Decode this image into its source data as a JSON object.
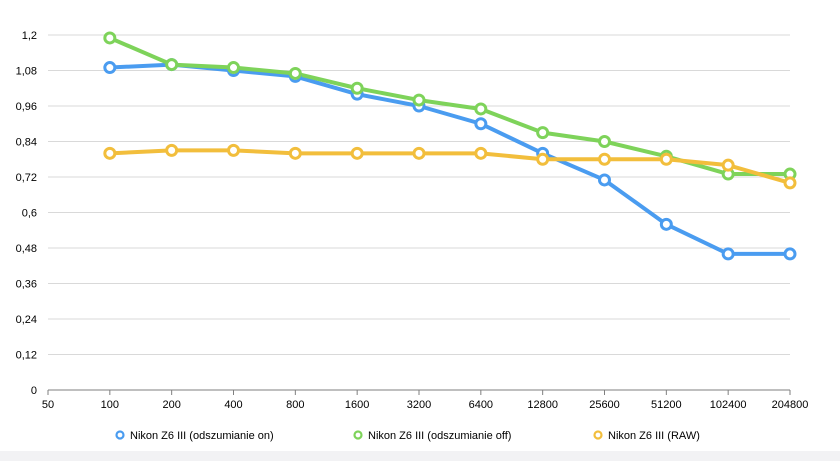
{
  "chart_data": {
    "type": "line",
    "title": "",
    "xlabel": "",
    "ylabel": "",
    "x_ticks": [
      "50",
      "100",
      "200",
      "400",
      "800",
      "1600",
      "3200",
      "6400",
      "12800",
      "25600",
      "51200",
      "102400",
      "204800"
    ],
    "categories": [
      "100",
      "200",
      "400",
      "800",
      "1600",
      "3200",
      "6400",
      "12800",
      "25600",
      "51200",
      "102400",
      "204800"
    ],
    "y_ticks": [
      "0",
      "0,12",
      "0,24",
      "0,36",
      "0,48",
      "0,6",
      "0,72",
      "0,84",
      "0,96",
      "1,08",
      "1,2"
    ],
    "ylim": [
      0,
      1.2
    ],
    "grid": true,
    "legend_position": "bottom",
    "series": [
      {
        "name": "Nikon Z6 III (odszumianie on)",
        "color": "#4a9cf0",
        "values": [
          1.09,
          1.1,
          1.08,
          1.06,
          1.0,
          0.96,
          0.9,
          0.8,
          0.71,
          0.56,
          0.46,
          0.46
        ]
      },
      {
        "name": "Nikon Z6 III (odszumianie off)",
        "color": "#7ed35a",
        "values": [
          1.19,
          1.1,
          1.09,
          1.07,
          1.02,
          0.98,
          0.95,
          0.87,
          0.84,
          0.79,
          0.73,
          0.73
        ]
      },
      {
        "name": "Nikon Z6 III (RAW)",
        "color": "#f2be3c",
        "values": [
          0.8,
          0.81,
          0.81,
          0.8,
          0.8,
          0.8,
          0.8,
          0.78,
          0.78,
          0.78,
          0.76,
          0.7
        ]
      }
    ]
  }
}
